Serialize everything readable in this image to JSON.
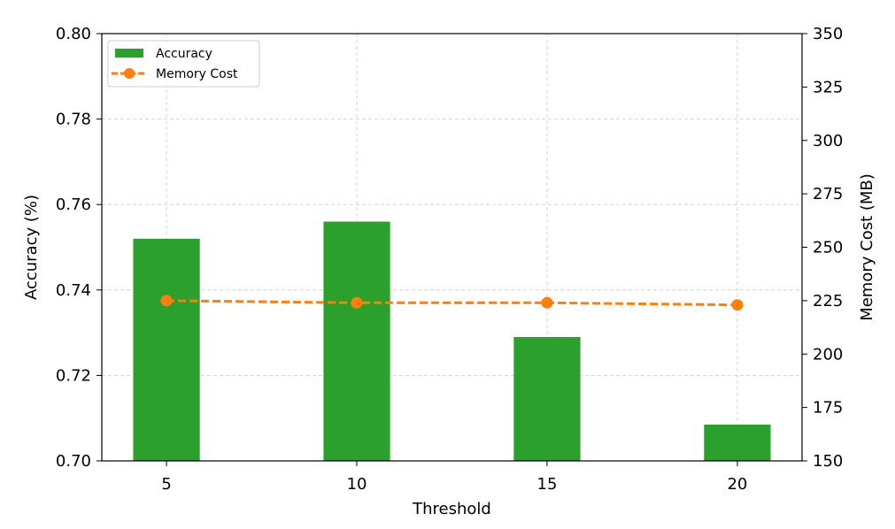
{
  "chart_data": {
    "type": "bar",
    "categories": [
      "5",
      "10",
      "15",
      "20"
    ],
    "x": [
      5,
      10,
      15,
      20
    ],
    "xlabel": "Threshold",
    "ylabel": "Accuracy (%)",
    "y2label": "Memory Cost (MB)",
    "ylim": [
      0.7,
      0.8
    ],
    "y2lim": [
      150,
      350
    ],
    "yticks": [
      "0.70",
      "0.72",
      "0.74",
      "0.76",
      "0.78",
      "0.80"
    ],
    "y2ticks": [
      "150",
      "175",
      "200",
      "225",
      "250",
      "275",
      "300",
      "325",
      "350"
    ],
    "grid": true,
    "legend_position": "top-left",
    "series": [
      {
        "name": "Accuracy",
        "type": "bar",
        "axis": "left",
        "color": "#2ca02c",
        "values": [
          0.752,
          0.756,
          0.729,
          0.7085
        ]
      },
      {
        "name": "Memory Cost",
        "type": "line",
        "axis": "right",
        "color": "#ff7f0e",
        "line_style": "dashed",
        "marker": "circle",
        "values": [
          225,
          224,
          224,
          223
        ]
      }
    ]
  }
}
